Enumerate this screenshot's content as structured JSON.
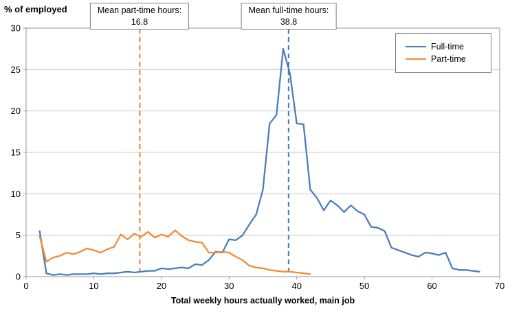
{
  "title": "% of employed",
  "xlabel": "Total weekly hours actually worked, main job",
  "annotations": [
    {
      "id": "part-time-mean",
      "line1": "Mean part-time hours:",
      "line2": "16.8"
    },
    {
      "id": "full-time-mean",
      "line1": "Mean full-time hours:",
      "line2": "38.8"
    }
  ],
  "legend": [
    {
      "name": "Full-time",
      "color": "#4a7ebb"
    },
    {
      "name": "Part-time",
      "color": "#f08c36"
    }
  ],
  "colors": {
    "fulltime": "#4a7ebb",
    "parttime": "#f08c36",
    "grid": "#c8c8c8",
    "border": "#969696",
    "text": "#000000"
  },
  "chart_data": {
    "type": "line",
    "title": "% of employed",
    "xlabel": "Total weekly hours actually worked, main job",
    "ylabel": "% of employed",
    "xlim": [
      0,
      70
    ],
    "ylim": [
      0,
      30
    ],
    "xtick_step": 10,
    "ytick_step": 5,
    "grid": "horizontal",
    "legend_position": "top-right",
    "mean_lines": [
      {
        "label": "Mean part-time hours: 16.8",
        "x": 16.8,
        "color": "#f08c36"
      },
      {
        "label": "Mean full-time hours: 38.8",
        "x": 38.8,
        "color": "#4a7ebb"
      }
    ],
    "series": [
      {
        "name": "Full-time",
        "color": "#4a7ebb",
        "x": [
          2,
          3,
          4,
          5,
          6,
          7,
          8,
          9,
          10,
          11,
          12,
          13,
          14,
          15,
          16,
          17,
          18,
          19,
          20,
          21,
          22,
          23,
          24,
          25,
          26,
          27,
          28,
          29,
          30,
          31,
          32,
          33,
          34,
          35,
          36,
          37,
          38,
          39,
          40,
          41,
          42,
          43,
          44,
          45,
          46,
          47,
          48,
          49,
          50,
          51,
          52,
          53,
          54,
          55,
          56,
          57,
          58,
          59,
          60,
          61,
          62,
          63,
          64,
          65,
          66,
          67
        ],
        "y": [
          5.5,
          0.4,
          0.2,
          0.3,
          0.2,
          0.3,
          0.3,
          0.3,
          0.4,
          0.3,
          0.4,
          0.4,
          0.5,
          0.6,
          0.5,
          0.6,
          0.7,
          0.7,
          1.0,
          0.9,
          1.0,
          1.1,
          1.0,
          1.5,
          1.4,
          2.0,
          3.0,
          2.9,
          4.5,
          4.4,
          5.0,
          6.3,
          7.5,
          10.5,
          18.5,
          19.5,
          27.5,
          24.5,
          18.5,
          18.4,
          10.5,
          9.5,
          8.0,
          9.2,
          8.6,
          7.8,
          8.6,
          7.9,
          7.5,
          6.0,
          5.9,
          5.5,
          3.5,
          3.2,
          2.9,
          2.6,
          2.4,
          2.9,
          2.8,
          2.6,
          2.9,
          1.0,
          0.8,
          0.8,
          0.7,
          0.6
        ]
      },
      {
        "name": "Part-time",
        "color": "#f08c36",
        "x": [
          2,
          3,
          4,
          5,
          6,
          7,
          8,
          9,
          10,
          11,
          12,
          13,
          14,
          15,
          16,
          17,
          18,
          19,
          20,
          21,
          22,
          23,
          24,
          25,
          26,
          27,
          28,
          29,
          30,
          31,
          32,
          33,
          34,
          35,
          36,
          37,
          38,
          39,
          40,
          41,
          42
        ],
        "y": [
          4.9,
          1.8,
          2.3,
          2.5,
          2.9,
          2.7,
          3.0,
          3.4,
          3.2,
          2.9,
          3.3,
          3.6,
          5.1,
          4.5,
          5.2,
          4.8,
          5.4,
          4.7,
          5.1,
          4.8,
          5.6,
          4.9,
          4.4,
          4.2,
          4.1,
          2.9,
          2.9,
          3.0,
          2.9,
          2.4,
          2.0,
          1.3,
          1.1,
          1.0,
          0.8,
          0.7,
          0.6,
          0.6,
          0.5,
          0.4,
          0.3
        ]
      }
    ]
  }
}
